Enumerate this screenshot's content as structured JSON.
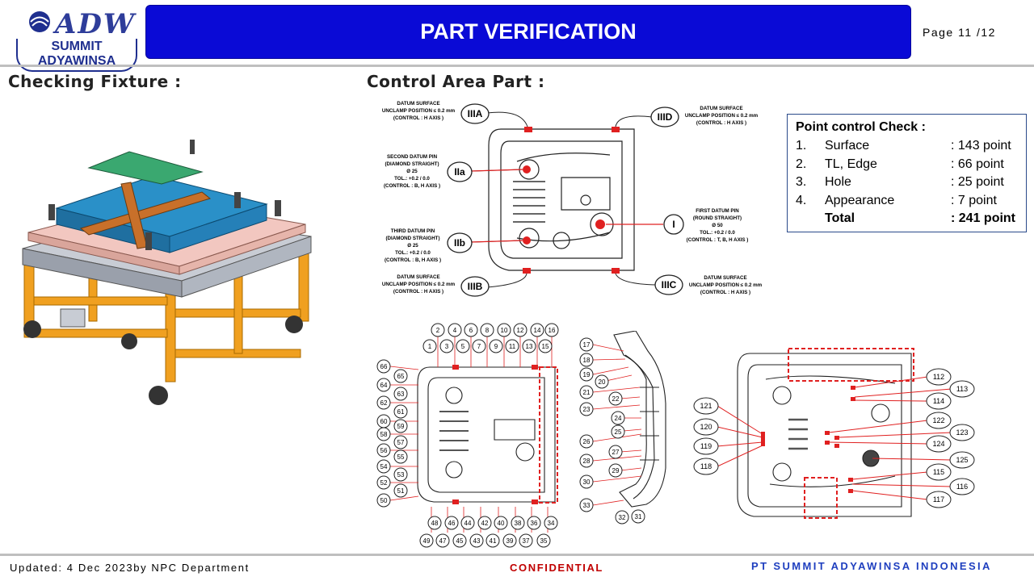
{
  "header": {
    "logo_word": "ADW",
    "logo_name": "SUMMIT ADYAWINSA",
    "title": "PART VERIFICATION",
    "page": "Page  11 /12"
  },
  "sections": {
    "left_heading": "Checking Fixture :",
    "right_heading": "Control Area Part :"
  },
  "datum_diagram": {
    "labels": {
      "IIIA": "IIIA",
      "IIID": "IIID",
      "IIa": "IIa",
      "IIb": "IIb",
      "I": "I",
      "IIIB": "IIIB",
      "IIIC": "IIIC"
    },
    "notes": {
      "iiia": [
        "DATUM SURFACE",
        "UNCLAMP POSITION ≤ 0.2 mm",
        "(CONTROL : H AXIS )"
      ],
      "iiid": [
        "DATUM SURFACE",
        "UNCLAMP POSITION ≤ 0.2 mm",
        "(CONTROL : H AXIS )"
      ],
      "iia": [
        "SECOND DATUM PIN",
        "(DIAMOND STRAIGHT)",
        "Ø 25",
        "TOL.: +0.2 / 0.0",
        "(CONTROL : B, H AXIS )"
      ],
      "i": [
        "FIRST DATUM PIN",
        "(ROUND STRAIGHT)",
        "Ø 50",
        "TOL.: +0.2 / 0.0",
        "(CONTROL : T, B, H AXIS )"
      ],
      "iib": [
        "THIRD DATUM PIN",
        "(DIAMOND STRAIGHT)",
        "Ø 25",
        "TOL.: +0.2 / 0.0",
        "(CONTROL : B, H AXIS )"
      ],
      "iiib": [
        "DATUM SURFACE",
        "UNCLAMP POSITION ≤ 0.2 mm",
        "(CONTROL : H AXIS )"
      ],
      "iiic": [
        "DATUM SURFACE",
        "UNCLAMP POSITION ≤ 0.2 mm",
        "(CONTROL : H AXIS )"
      ]
    }
  },
  "point_control": {
    "title": "Point control Check :",
    "rows": [
      {
        "num": "1.",
        "label": "Surface",
        "value": ": 143 point"
      },
      {
        "num": "2.",
        "label": "TL, Edge",
        "value": ": 66 point"
      },
      {
        "num": "3.",
        "label": "Hole",
        "value": ": 25 point"
      },
      {
        "num": "4.",
        "label": "Appearance",
        "value": ": 7 point"
      }
    ],
    "total_label": "Total",
    "total_value": ": 241 point"
  },
  "bottom_left_numbers": {
    "top_row_outer": [
      "2",
      "4",
      "6",
      "8",
      "10",
      "12",
      "14",
      "16"
    ],
    "top_row_inner": [
      "1",
      "3",
      "5",
      "7",
      "9",
      "11",
      "13",
      "15"
    ],
    "left_col_outer": [
      "66",
      "64",
      "62",
      "60",
      "58",
      "56",
      "54",
      "52",
      "50"
    ],
    "left_col_inner": [
      "65",
      "63",
      "61",
      "59",
      "57",
      "55",
      "53",
      "51"
    ],
    "bottom_row_inner": [
      "48",
      "46",
      "44",
      "42",
      "40",
      "38",
      "36",
      "34"
    ],
    "bottom_row_outer": [
      "49",
      "47",
      "45",
      "43",
      "41",
      "39",
      "37",
      "35"
    ]
  },
  "side_numbers": {
    "left": [
      "17",
      "18",
      "19",
      "21",
      "23",
      "26",
      "28",
      "30",
      "33"
    ],
    "inner": [
      "20",
      "22",
      "24",
      "25",
      "27",
      "29"
    ],
    "bottom": [
      "32",
      "31"
    ]
  },
  "right_numbers": {
    "left": [
      "121",
      "120",
      "119",
      "118"
    ],
    "right_inner": [
      "112",
      "114",
      "122",
      "124",
      "115",
      "117"
    ],
    "right_outer": [
      "113",
      "123",
      "125",
      "116"
    ]
  },
  "footer": {
    "updated": "Updated: 4 Dec 2023by NPC Department",
    "confidential": "CONFIDENTIAL",
    "company": "PT SUMMIT ADYAWINSA INDONESIA"
  },
  "colors": {
    "title_bar": "#0a0ad6",
    "accent_red": "#e02020",
    "company_blue": "#1f3fbf",
    "fixture_frame": "#f0a020",
    "fixture_table": "#f2c7c0",
    "fixture_part": "#2a90c8"
  }
}
